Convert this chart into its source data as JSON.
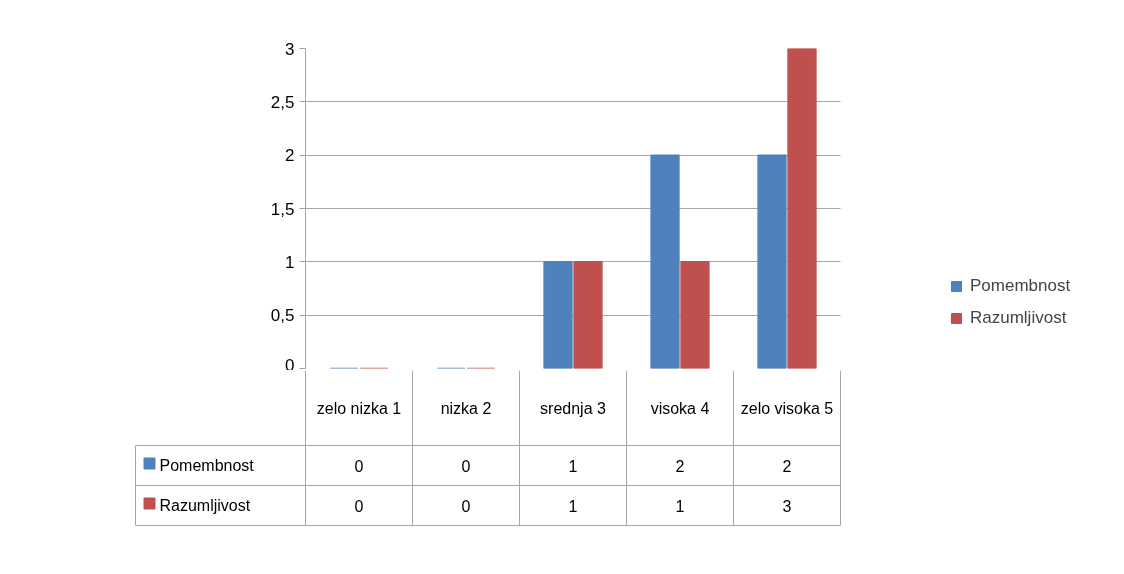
{
  "chart_data": {
    "type": "bar",
    "categories": [
      "zelo nizka 1",
      "nizka 2",
      "srednja 3",
      "visoka 4",
      "zelo visoka 5"
    ],
    "series": [
      {
        "name": "Pomembnost",
        "color": "#4f81bd",
        "values": [
          0,
          0,
          1,
          2,
          2
        ]
      },
      {
        "name": "Razumljivost",
        "color": "#c0504d",
        "values": [
          0,
          0,
          1,
          1,
          3
        ]
      }
    ],
    "ylim": [
      0,
      3
    ],
    "yticks": [
      0,
      {
        "value": 0.5,
        "label": "0,5"
      },
      1,
      {
        "value": 1.5,
        "label": "1,5"
      },
      2,
      {
        "value": 2.5,
        "label": "2,5"
      },
      3
    ],
    "grid": "y",
    "legend": "right",
    "data_labels": true
  }
}
